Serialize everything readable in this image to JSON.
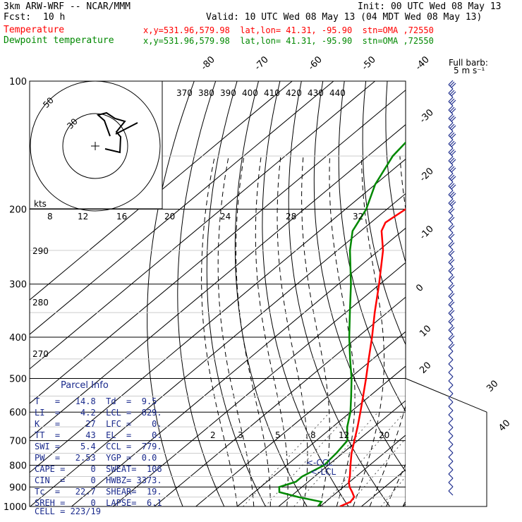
{
  "header": {
    "line1_left": "3km ARW-WRF -- NCAR/MMM",
    "line1_right": "Init: 00 UTC Wed 08 May 13",
    "fcst_label": "Fcst:",
    "fcst_value": "10 h",
    "valid": "Valid: 10 UTC Wed 08 May 13 (04 MDT Wed 08 May 13)",
    "temp_label": "Temperature",
    "temp_info": "x,y=531.96,579.98  lat,lon= 41.31, -95.90  stn=OMA ,72550",
    "dew_label": "Dewpoint temperature",
    "dew_info": "x,y=531.96,579.98  lat,lon= 41.31, -95.90  stn=OMA ,72550"
  },
  "barb_legend": {
    "line1": "Full barb:",
    "line2": "5 m s⁻¹"
  },
  "hodograph": {
    "unit": "kts",
    "ring_labels": [
      "50",
      "30"
    ]
  },
  "parcel_info": {
    "title": "Parcel Info",
    "rows": [
      "T   =   14.8  Td  =  9.5",
      "LI  =    4.2  LCL =  829.",
      "K   =     27  LFC =    0.",
      "TT  =     43  EL  =    0.",
      "SWI =    5.4  CCL =  779.",
      "PW  =   2.53  YGP =  0.0",
      "CAPE =     0  SWEAT=  106",
      "CIN  =     0  HWBZ= 3373.",
      "Tc  =   22.7  SHEAR=  19.",
      "SREH =     0  LAPSE=  6.1",
      "CELL = 223/19"
    ]
  },
  "level_markers": {
    "lcl": "<-LCL",
    "ccl": "<-CCL"
  },
  "chart_data": {
    "type": "line",
    "title": "",
    "xlabel": "",
    "ylabel": "",
    "y_pressure_ticks": [
      100,
      200,
      300,
      400,
      500,
      600,
      700,
      800,
      900,
      1000
    ],
    "temperature_ticks_top": [
      "-80",
      "-70",
      "-60",
      "-50",
      "-40"
    ],
    "temperature_ticks_right": [
      "-30",
      "-20",
      "-10",
      "0",
      "10",
      "20",
      "30",
      "40"
    ],
    "theta_labels": [
      "370",
      "380",
      "390",
      "400",
      "410",
      "420",
      "430",
      "440"
    ],
    "theta_left_labels": [
      "290",
      "280",
      "270"
    ],
    "mixing_ratio_labels": [
      "8",
      "12",
      "16",
      "20",
      "24",
      "28",
      "32"
    ],
    "mixing_ratio_labels_low": [
      "2",
      "3",
      "5",
      "8",
      "12",
      "20"
    ],
    "series": [
      {
        "name": "Temperature",
        "color": "#ff0000",
        "pressure": [
          1000,
          975,
          950,
          925,
          900,
          875,
          850,
          800,
          750,
          700,
          650,
          600,
          550,
          500,
          450,
          400,
          350,
          300,
          250,
          225,
          215,
          200,
          175,
          150,
          125,
          100
        ],
        "value": [
          14.8,
          16.0,
          15.5,
          13.6,
          11.5,
          9.8,
          8.5,
          5.4,
          2.2,
          -0.8,
          -4.0,
          -7.6,
          -11.6,
          -16.0,
          -21.0,
          -26.5,
          -33.0,
          -40.2,
          -49.0,
          -55.0,
          -56.5,
          -55.5,
          -53.0,
          -52.5,
          -52.0,
          -52.0
        ]
      },
      {
        "name": "Dewpoint temperature",
        "color": "#008800",
        "pressure": [
          1000,
          975,
          950,
          925,
          900,
          875,
          850,
          800,
          750,
          700,
          650,
          600,
          550,
          500,
          450,
          400,
          350,
          300,
          250,
          225,
          200,
          175,
          150,
          125,
          100
        ],
        "value": [
          9.5,
          9.0,
          2.0,
          -4.0,
          -5.5,
          -3.0,
          -3.0,
          -1.0,
          -1.5,
          -2.5,
          -6.5,
          -10.0,
          -14.5,
          -19.5,
          -25.5,
          -32.0,
          -39.0,
          -47.0,
          -57.0,
          -62.0,
          -65.0,
          -70.0,
          -74.0,
          -76.0,
          -76.0
        ]
      }
    ]
  }
}
